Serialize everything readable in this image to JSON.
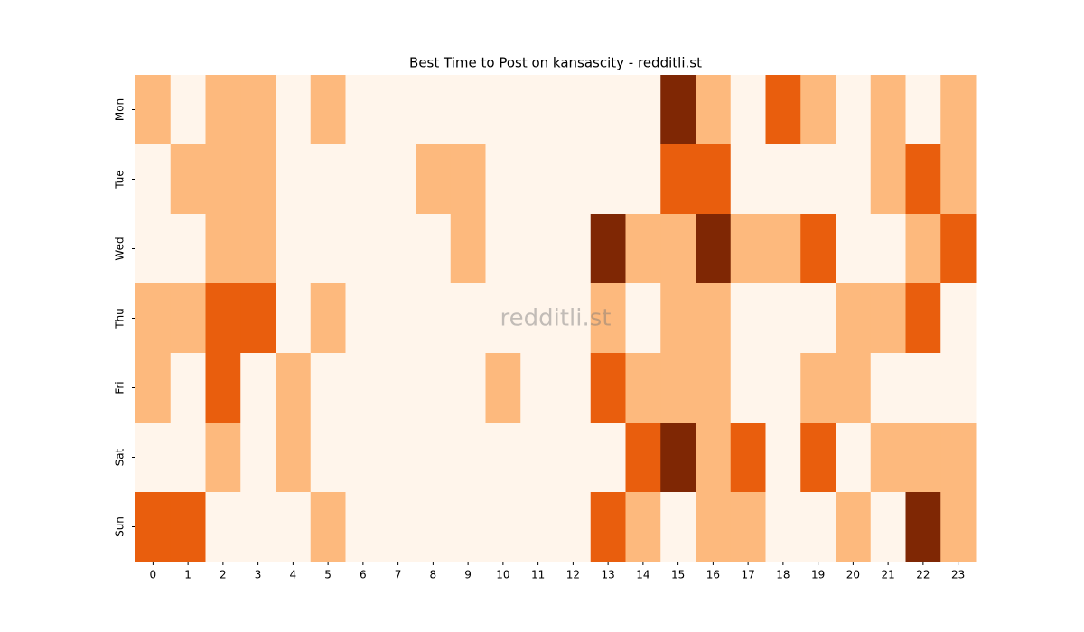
{
  "chart_data": {
    "type": "heatmap",
    "title": "Best Time to Post on kansascity - redditli.st",
    "watermark": "redditli.st",
    "x": [
      0,
      1,
      2,
      3,
      4,
      5,
      6,
      7,
      8,
      9,
      10,
      11,
      12,
      13,
      14,
      15,
      16,
      17,
      18,
      19,
      20,
      21,
      22,
      23
    ],
    "categories": [
      "Mon",
      "Tue",
      "Wed",
      "Thu",
      "Fri",
      "Sat",
      "Sun"
    ],
    "values": [
      [
        1,
        0,
        1,
        1,
        0,
        1,
        0,
        0,
        0,
        0,
        0,
        0,
        0,
        0,
        0,
        3,
        1,
        0,
        2,
        1,
        0,
        1,
        0,
        1
      ],
      [
        0,
        1,
        1,
        1,
        0,
        0,
        0,
        0,
        1,
        1,
        0,
        0,
        0,
        0,
        0,
        2,
        2,
        0,
        0,
        0,
        0,
        1,
        2,
        1
      ],
      [
        0,
        0,
        1,
        1,
        0,
        0,
        0,
        0,
        0,
        1,
        0,
        0,
        0,
        3,
        1,
        1,
        3,
        1,
        1,
        2,
        0,
        0,
        1,
        2
      ],
      [
        1,
        1,
        2,
        2,
        0,
        1,
        0,
        0,
        0,
        0,
        0,
        0,
        0,
        1,
        0,
        1,
        1,
        0,
        0,
        0,
        1,
        1,
        2,
        0
      ],
      [
        1,
        0,
        2,
        0,
        1,
        0,
        0,
        0,
        0,
        0,
        1,
        0,
        0,
        2,
        1,
        1,
        1,
        0,
        0,
        1,
        1,
        0,
        0,
        0
      ],
      [
        0,
        0,
        1,
        0,
        1,
        0,
        0,
        0,
        0,
        0,
        0,
        0,
        0,
        0,
        2,
        3,
        1,
        2,
        0,
        2,
        0,
        1,
        1,
        1
      ],
      [
        2,
        2,
        0,
        0,
        0,
        1,
        0,
        0,
        0,
        0,
        0,
        0,
        0,
        2,
        1,
        0,
        1,
        1,
        0,
        0,
        1,
        0,
        3,
        1
      ]
    ],
    "clim": [
      0,
      3
    ],
    "colors": [
      "#fff5eb",
      "#fdb97d",
      "#e95e0d",
      "#7f2704"
    ]
  }
}
